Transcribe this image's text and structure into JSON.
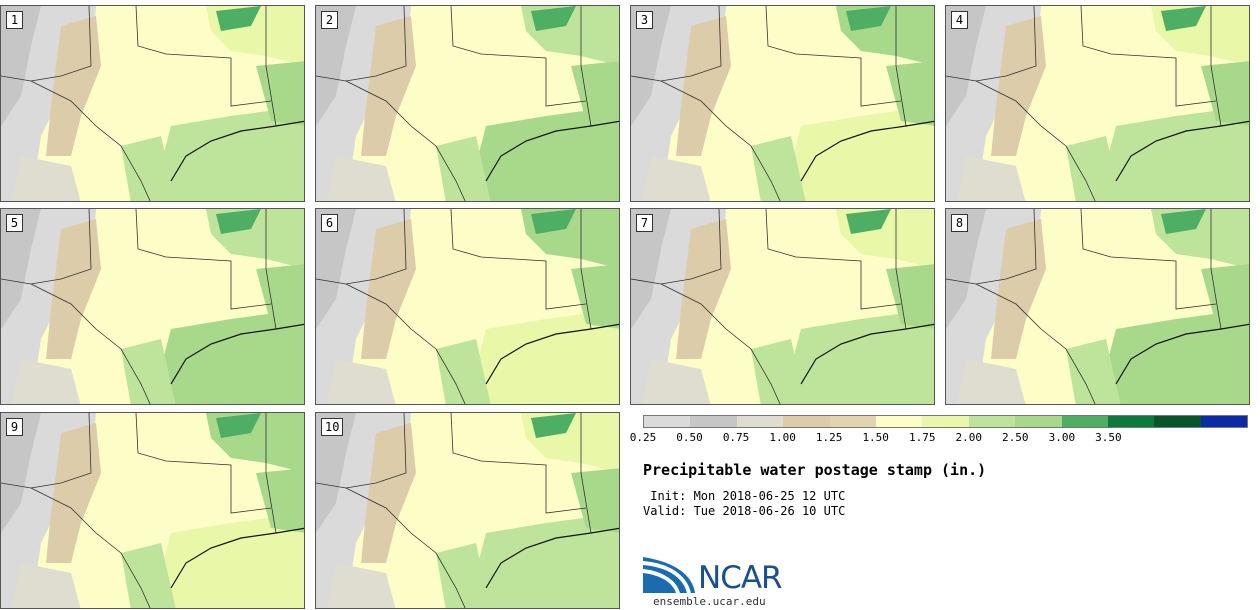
{
  "panels": [
    {
      "label": "1"
    },
    {
      "label": "2"
    },
    {
      "label": "3"
    },
    {
      "label": "4"
    },
    {
      "label": "5"
    },
    {
      "label": "6"
    },
    {
      "label": "7"
    },
    {
      "label": "8"
    },
    {
      "label": "9"
    },
    {
      "label": "10"
    }
  ],
  "legend": {
    "ticks": [
      "0.25",
      "0.50",
      "0.75",
      "1.00",
      "1.25",
      "1.50",
      "1.75",
      "2.00",
      "2.50",
      "3.00",
      "3.50"
    ],
    "colors": [
      "#dadada",
      "#c6c6c6",
      "#dfdcd0",
      "#dcccaa",
      "#e3d4b0",
      "#fdfdc8",
      "#e8f7a8",
      "#bde49a",
      "#a8d98a",
      "#4dae64",
      "#0c7a3a",
      "#06552b",
      "#0b2aa8"
    ]
  },
  "title": "Precipitable water postage stamp (in.)",
  "init": " Init: Mon 2018-06-25 12 UTC",
  "valid": "Valid: Tue 2018-06-26 10 UTC",
  "logo": {
    "text": "NCAR",
    "site": "ensemble.ucar.edu"
  }
}
